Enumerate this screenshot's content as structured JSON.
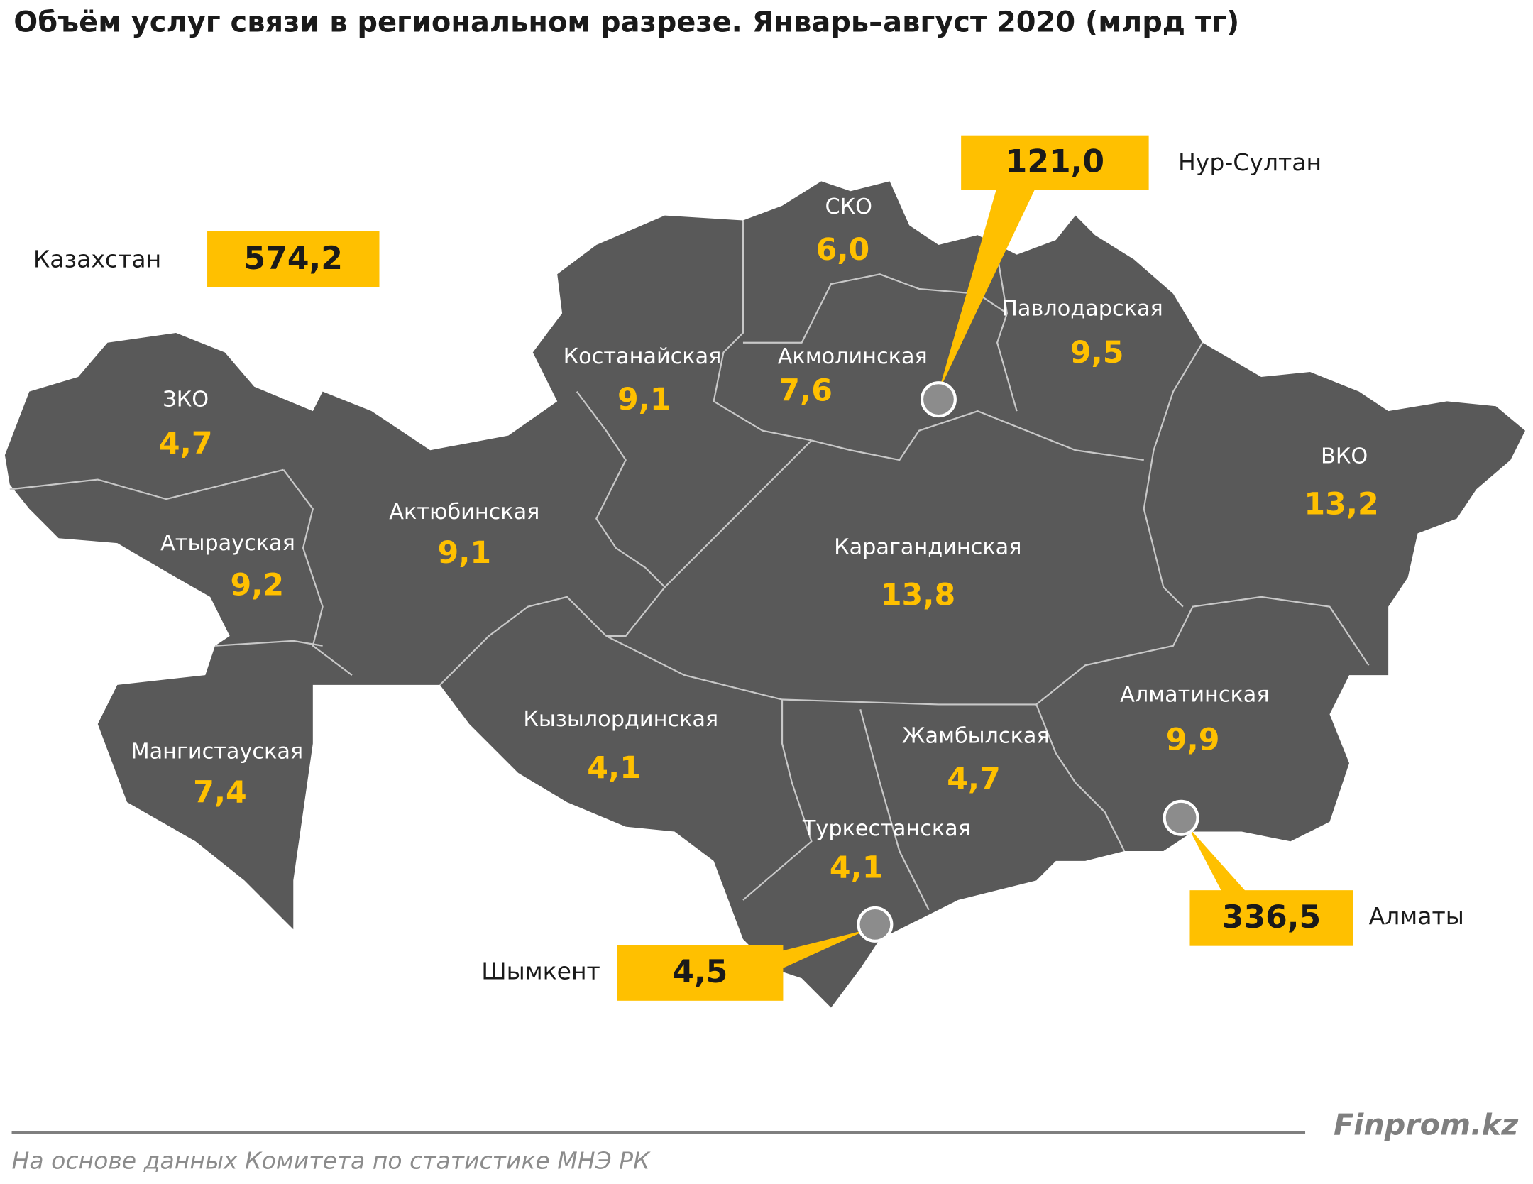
{
  "title": "Объём услуг связи  в региональном разрезе. Январь–август 2020  (млрд тг)",
  "total": {
    "label": "Казахстан",
    "value": "574,2"
  },
  "regions": [
    {
      "name": "СКО",
      "value": "6,0"
    },
    {
      "name": "Павлодарская",
      "value": "9,5"
    },
    {
      "name": "Костанайская",
      "value": "9,1"
    },
    {
      "name": "Акмолинская",
      "value": "7,6"
    },
    {
      "name": "ЗКО",
      "value": "4,7"
    },
    {
      "name": "ВКО",
      "value": "13,2"
    },
    {
      "name": "Атырауская",
      "value": "9,2"
    },
    {
      "name": "Актюбинская",
      "value": "9,1"
    },
    {
      "name": "Карагандинская",
      "value": "13,8"
    },
    {
      "name": "Алматинская",
      "value": "9,9"
    },
    {
      "name": "Кызылординская",
      "value": "4,1"
    },
    {
      "name": "Жамбылская",
      "value": "4,7"
    },
    {
      "name": "Мангистауская",
      "value": "7,4"
    },
    {
      "name": "Туркестанская",
      "value": "4,1"
    }
  ],
  "cities": [
    {
      "name": "Нур-Султан",
      "value": "121,0"
    },
    {
      "name": "Алматы",
      "value": "336,5"
    },
    {
      "name": "Шымкент",
      "value": "4,5"
    }
  ],
  "brand": "Finprom.kz",
  "source": "На основе данных  Комитета по статистике МНЭ РК"
}
